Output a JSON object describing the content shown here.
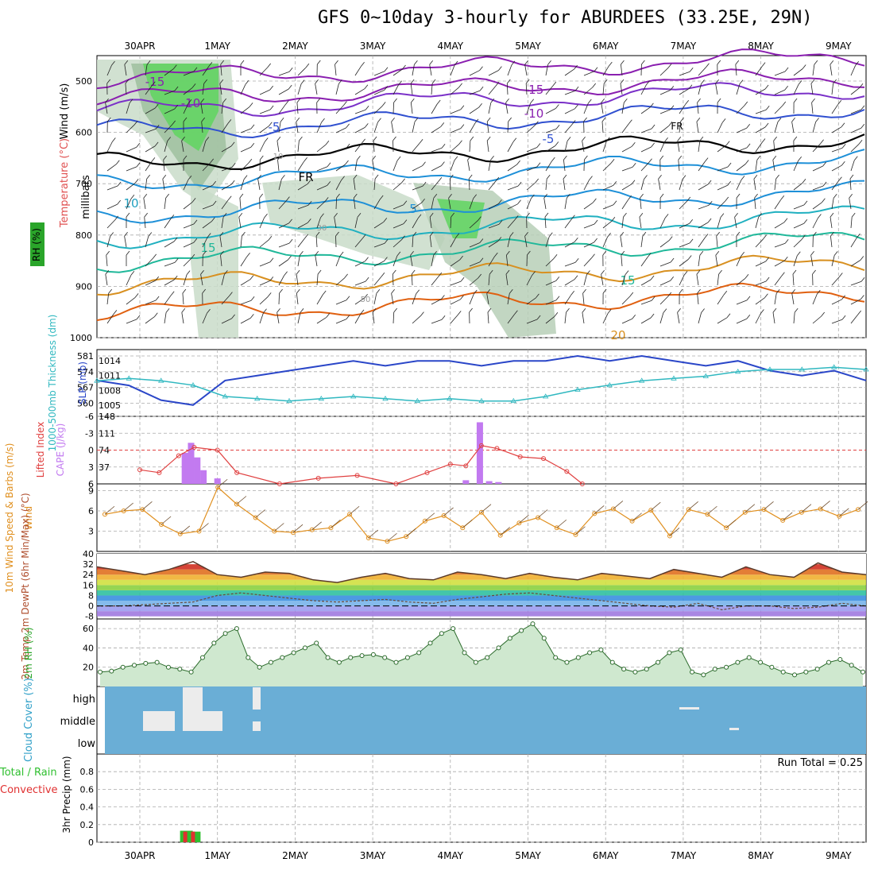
{
  "title": "GFS 0~10day 3-hourly for ABURDEES (33.25E, 29N)",
  "date_labels": [
    "30APR",
    "1MAY",
    "2MAY",
    "3MAY",
    "4MAY",
    "5MAY",
    "6MAY",
    "7MAY",
    "8MAY",
    "9MAY"
  ],
  "colors": {
    "grid": "#aaaaaa",
    "cloud": "#6aaed6",
    "cape": "#c27af0",
    "li": "#e04040",
    "slp": "#2a46c8",
    "thk": "#30b8c0",
    "wind": "#e09020",
    "rh": "#2aa52a",
    "rain": "#2fbf2f",
    "conv": "#e03030"
  },
  "chart_data": [
    {
      "type": "contour",
      "panel": "upper-air",
      "ylabel_parts": [
        "RH (%)",
        "Temperature (°C)",
        "Wind (m/s)"
      ],
      "yaxis_label": "millibars",
      "y_ticks": [
        500,
        600,
        700,
        800,
        900,
        1000
      ],
      "temperature_contour_labels": [
        "-15",
        "-10",
        "-5",
        "FR",
        "5",
        "10",
        "15",
        "20"
      ],
      "rh_contour_labels": [
        "10",
        "30",
        "50"
      ]
    },
    {
      "type": "line",
      "panel": "thickness-slp",
      "ylabel_left": "1000-500mb Thickness (dm)",
      "ylabel_right": "SLP (mb)",
      "left_ticks": [
        560,
        567,
        574,
        581
      ],
      "right_ticks": [
        1005,
        1008,
        1011,
        1014
      ],
      "series": [
        {
          "name": "SLP",
          "values": [
            1010,
            1009,
            1006,
            1005,
            1010,
            1011,
            1012,
            1013,
            1014,
            1013,
            1014,
            1014,
            1013,
            1014,
            1014,
            1015,
            1014,
            1015,
            1014,
            1013,
            1014,
            1012,
            1011,
            1012,
            1010
          ]
        },
        {
          "name": "Thickness",
          "values": [
            570,
            571,
            570,
            568,
            563,
            562,
            561,
            562,
            563,
            562,
            561,
            562,
            561,
            561,
            563,
            566,
            568,
            570,
            571,
            572,
            574,
            575,
            575,
            576,
            575
          ]
        }
      ]
    },
    {
      "type": "bar",
      "panel": "cape-li",
      "ylabel_left": "Lifted Index",
      "ylabel_right": "CAPE (J/kg)",
      "left_ticks": [
        "-6",
        "-3",
        "0",
        "3",
        "6"
      ],
      "right_ticks": [
        37,
        74,
        111,
        148
      ],
      "cape_bars": [
        {
          "x": 0.58,
          "value": 68
        },
        {
          "x": 0.66,
          "value": 90
        },
        {
          "x": 0.74,
          "value": 58
        },
        {
          "x": 0.82,
          "value": 30
        },
        {
          "x": 1.0,
          "value": 12
        },
        {
          "x": 4.2,
          "value": 8
        },
        {
          "x": 4.38,
          "value": 135
        },
        {
          "x": 4.5,
          "value": 6
        },
        {
          "x": 4.62,
          "value": 4
        }
      ],
      "lifted_index": [
        [
          0,
          3.5
        ],
        [
          0.25,
          4
        ],
        [
          0.5,
          1
        ],
        [
          0.7,
          -0.5
        ],
        [
          1.0,
          0
        ],
        [
          1.25,
          4
        ],
        [
          1.8,
          6
        ],
        [
          2.3,
          5
        ],
        [
          2.8,
          4.5
        ],
        [
          3.3,
          6
        ],
        [
          3.7,
          4
        ],
        [
          4.0,
          2.5
        ],
        [
          4.2,
          2.8
        ],
        [
          4.4,
          -0.8
        ],
        [
          4.6,
          -0.3
        ],
        [
          4.9,
          1.2
        ],
        [
          5.2,
          1.5
        ],
        [
          5.5,
          3.8
        ],
        [
          5.7,
          6
        ]
      ]
    },
    {
      "type": "line",
      "panel": "10m-wind",
      "ylabel": "10m Wind Speed & Barbs (m/s)",
      "y_ticks": [
        3,
        6,
        9
      ],
      "values": [
        5.5,
        6,
        6.2,
        4,
        2.6,
        3,
        9.5,
        7,
        5,
        3,
        2.8,
        3.2,
        3.5,
        5.5,
        2,
        1.5,
        2.2,
        4.5,
        5.3,
        3.5,
        5.8,
        2.4,
        4.2,
        5,
        3.5,
        2.5,
        5.6,
        6.3,
        4.5,
        6.1,
        2.3,
        6.2,
        5.5,
        3.5,
        5.8,
        6.2,
        4.6,
        5.8,
        6.3,
        5.2,
        6.2
      ]
    },
    {
      "type": "area",
      "panel": "2m-temp",
      "ylabel": "2m Temp 2m DewPt (6hr Min/Max) (°C)",
      "y_ticks": [
        -8,
        0,
        8,
        16,
        24,
        32,
        40
      ],
      "temp_values": [
        30,
        27,
        24,
        28,
        34,
        24,
        22,
        26,
        25,
        20,
        18,
        22,
        25,
        21,
        20,
        26,
        24,
        21,
        25,
        22,
        20,
        25,
        23,
        21,
        28,
        25,
        22,
        30,
        24,
        22,
        33,
        26,
        24
      ],
      "dewpt_values": [
        0,
        0,
        1,
        2,
        3,
        8,
        10,
        8,
        6,
        4,
        3,
        4,
        5,
        3,
        2,
        5,
        7,
        9,
        10,
        8,
        6,
        4,
        2,
        0,
        -1,
        2,
        -3,
        0,
        0,
        -2,
        -1,
        2,
        0
      ]
    },
    {
      "type": "area",
      "panel": "2m-rh",
      "ylabel": "2m RH (%)",
      "y_ticks": [
        20,
        40,
        60
      ],
      "values": [
        15,
        16,
        20,
        22,
        24,
        25,
        20,
        18,
        15,
        30,
        45,
        55,
        60,
        30,
        20,
        25,
        30,
        35,
        40,
        45,
        30,
        25,
        30,
        32,
        33,
        30,
        25,
        30,
        35,
        45,
        55,
        60,
        35,
        25,
        30,
        40,
        50,
        58,
        65,
        50,
        30,
        25,
        30,
        35,
        38,
        25,
        18,
        15,
        18,
        25,
        35,
        38,
        15,
        12,
        18,
        20,
        25,
        30,
        25,
        20,
        15,
        12,
        15,
        18,
        25,
        28,
        22,
        15
      ]
    },
    {
      "type": "heatmap",
      "panel": "cloud-cover",
      "ylabel": "Cloud Cover (%)",
      "levels": [
        "high",
        "middle",
        "low"
      ]
    },
    {
      "type": "bar",
      "panel": "precip",
      "ylabel": "3hr Precip (mm)",
      "series_names": [
        "Total / Rain",
        "Convective"
      ],
      "y_ticks": [
        0,
        0.2,
        0.4,
        0.6,
        0.8
      ],
      "run_total": "Run Total = 0.25",
      "bars": [
        {
          "x": 0.6,
          "total": 0.13,
          "conv": 0.12
        },
        {
          "x": 0.7,
          "total": 0.12,
          "conv": 0.12
        }
      ]
    }
  ]
}
